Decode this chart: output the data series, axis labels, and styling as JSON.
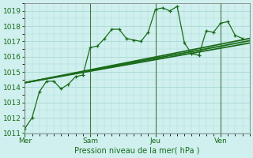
{
  "xlabel": "Pression niveau de la mer( hPa )",
  "ylim": [
    1011,
    1019.5
  ],
  "yticks": [
    1011,
    1012,
    1013,
    1014,
    1015,
    1016,
    1017,
    1018,
    1019
  ],
  "xtick_labels": [
    "Mer",
    "Sam",
    "Jeu",
    "Ven"
  ],
  "xtick_pos": [
    0,
    9,
    18,
    27
  ],
  "xlim": [
    0,
    31
  ],
  "background_color": "#cff0ee",
  "grid_color": "#aad8d4",
  "line_color": "#1a6b1a",
  "vline_color": "#447744",
  "series1_x": [
    0,
    1,
    2,
    3,
    4,
    5,
    6,
    7,
    8,
    9,
    10,
    11,
    12,
    13,
    14,
    15,
    16,
    17,
    18,
    19,
    20,
    21,
    22,
    23,
    24,
    25,
    26,
    27,
    28,
    29,
    30
  ],
  "series1_y": [
    1011.3,
    1012.0,
    1013.7,
    1014.4,
    1014.4,
    1013.9,
    1014.2,
    1014.7,
    1014.8,
    1016.6,
    1016.7,
    1017.2,
    1017.8,
    1017.8,
    1017.2,
    1017.1,
    1017.0,
    1017.6,
    1019.1,
    1019.2,
    1019.0,
    1019.3,
    1016.9,
    1016.2,
    1016.1,
    1017.7,
    1017.6,
    1018.2,
    1018.3,
    1017.4,
    1017.2
  ],
  "series2_x": [
    0,
    31
  ],
  "series2_y": [
    1014.3,
    1016.9
  ],
  "series3_x": [
    0,
    31
  ],
  "series3_y": [
    1014.3,
    1017.2
  ],
  "series4_x": [
    0,
    31
  ],
  "series4_y": [
    1014.3,
    1017.05
  ],
  "vline_x": [
    0,
    9,
    18,
    27
  ]
}
